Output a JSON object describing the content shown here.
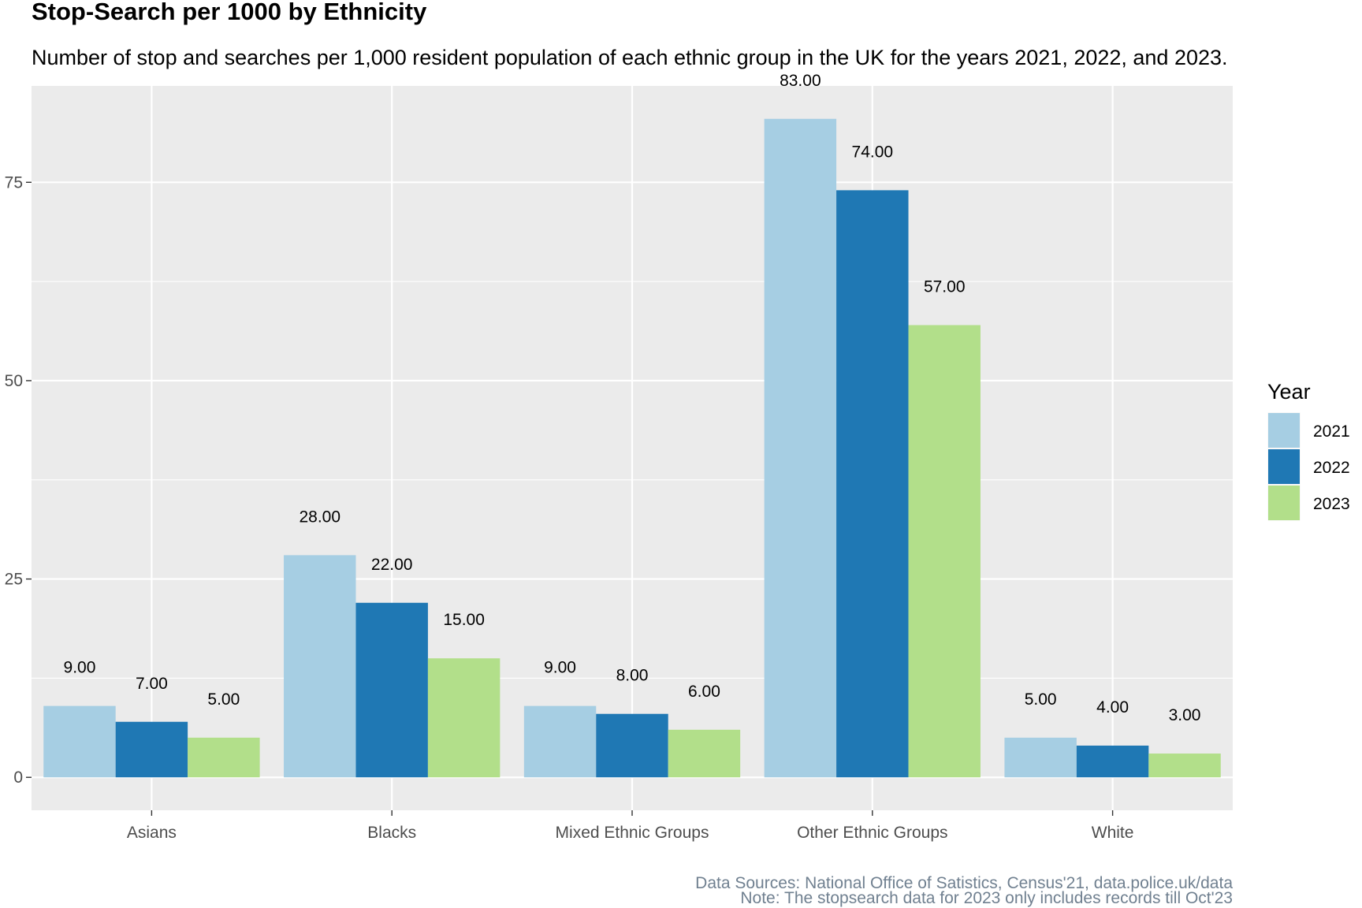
{
  "chart_data": {
    "type": "bar",
    "title": "Stop-Search per 1000 by Ethnicity",
    "subtitle": "Number of stop and searches per 1,000 resident population of each ethnic group in the UK for the years 2021, 2022, and 2023.",
    "xlabel": "",
    "ylabel": "",
    "categories": [
      "Asians",
      "Blacks",
      "Mixed Ethnic Groups",
      "Other Ethnic Groups",
      "White"
    ],
    "series": [
      {
        "name": "2021",
        "color": "#a6cee3",
        "values": [
          9,
          28,
          9,
          83,
          5
        ],
        "labels": [
          "9.00",
          "28.00",
          "9.00",
          "83.00",
          "5.00"
        ]
      },
      {
        "name": "2022",
        "color": "#1f78b4",
        "values": [
          7,
          22,
          8,
          74,
          4
        ],
        "labels": [
          "7.00",
          "22.00",
          "8.00",
          "74.00",
          "4.00"
        ]
      },
      {
        "name": "2023",
        "color": "#b2df8a",
        "values": [
          5,
          15,
          6,
          57,
          3
        ],
        "labels": [
          "5.00",
          "15.00",
          "6.00",
          "57.00",
          "3.00"
        ]
      }
    ],
    "ylim": [
      -4.15,
      87.15
    ],
    "yticks": [
      0,
      25,
      50,
      75
    ],
    "ytick_labels": [
      "0",
      "25",
      "50",
      "75"
    ],
    "y_minor_ticks": [
      12.5,
      37.5,
      62.5,
      87.5
    ],
    "grid": true,
    "legend": {
      "title": "Year",
      "placement": "right",
      "items": [
        "2021",
        "2022",
        "2023"
      ]
    },
    "caption": [
      "Data Sources: National Office of Satistics, Census'21, data.police.uk/data",
      "Note: The stopsearch data for 2023 only includes records till Oct'23"
    ],
    "panel_color": "#ebebeb",
    "grid_color": "#ffffff"
  }
}
